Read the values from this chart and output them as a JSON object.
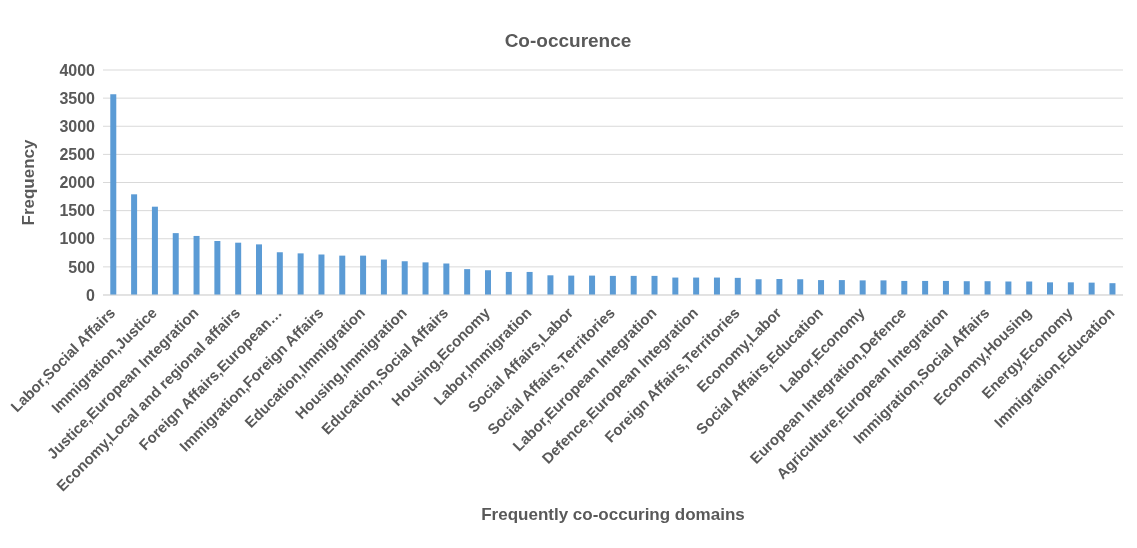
{
  "chart_data": {
    "type": "bar",
    "title": "Co-occurence",
    "xlabel": "Frequently co-occuring domains",
    "ylabel": "Frequency",
    "categories": [
      "Labor,Social Affairs",
      null,
      "Immigration,Justice",
      null,
      "Justice,European Integration",
      null,
      "Economy,Local and regional affairs",
      null,
      "Foreign Affairs,European…",
      null,
      "Immigration,Foreign Affairs",
      null,
      "Education,Immigration",
      null,
      "Housing,Immigration",
      null,
      "Education,Social Affairs",
      null,
      "Housing,Economy",
      null,
      "Labor,Immigration",
      null,
      "Social Affairs,Labor",
      null,
      "Social Affairs,Territories",
      null,
      "Labor,European Integration",
      null,
      "Defence,European Integration",
      null,
      "Foreign Affairs,Territories",
      null,
      "Economy,Labor",
      null,
      "Social Affairs,Education",
      null,
      "Labor,Economy",
      null,
      "European Integration,Defence",
      null,
      "Agriculture,European Integration",
      null,
      "Immigration,Social Affairs",
      null,
      "Economy,Housing",
      null,
      "Energy,Economy",
      null,
      "Immigration,Education"
    ],
    "values": [
      3570,
      1790,
      1570,
      1100,
      1050,
      960,
      930,
      900,
      760,
      740,
      720,
      700,
      700,
      630,
      600,
      580,
      560,
      460,
      440,
      410,
      410,
      350,
      345,
      345,
      340,
      340,
      340,
      310,
      310,
      310,
      305,
      280,
      285,
      280,
      265,
      265,
      260,
      260,
      250,
      250,
      250,
      245,
      245,
      240,
      240,
      225,
      225,
      220,
      210
    ],
    "color": "#5b9bd5",
    "ylim": [
      0,
      4000
    ],
    "yticks": [
      0,
      500,
      1000,
      1500,
      2000,
      2500,
      3000,
      3500,
      4000
    ],
    "grid": "y",
    "legend": false
  }
}
